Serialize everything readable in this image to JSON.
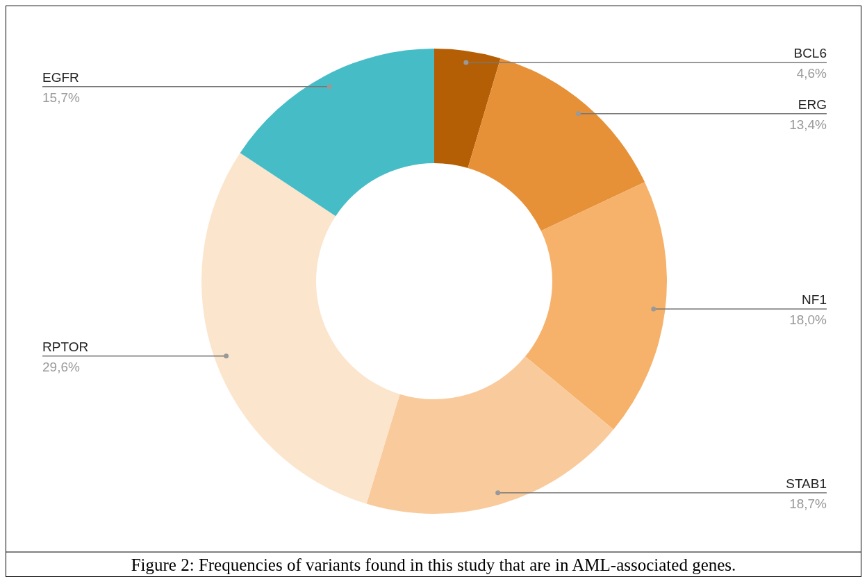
{
  "chart_data": {
    "type": "donut",
    "categories": [
      "BCL6",
      "ERG",
      "NF1",
      "STAB1",
      "RPTOR",
      "EGFR"
    ],
    "values": [
      4.6,
      13.4,
      18.0,
      18.7,
      29.6,
      15.7
    ],
    "value_labels": [
      "4,6%",
      "13,4%",
      "18,0%",
      "18,7%",
      "29,6%",
      "15,7%"
    ],
    "colors": [
      "#b45f06",
      "#e69138",
      "#f6b26b",
      "#f9cb9c",
      "#fce5cd",
      "#46bdc6"
    ],
    "annotations": [
      "Figure 2: Frequencies of variants found in this study that are in AML-associated genes."
    ]
  }
}
